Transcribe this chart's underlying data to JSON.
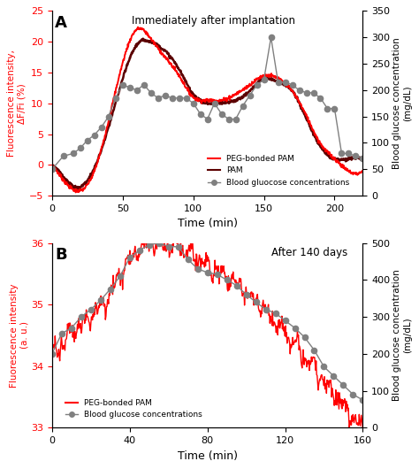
{
  "panel_A": {
    "title": "Immediately after implantation",
    "xlabel": "Time (min)",
    "ylabel_left": "Fluorescence intensity,\nΔF/Fi (%)",
    "ylabel_right": "Blood glucose concentration\n(mg/dL)",
    "xlim": [
      0,
      220
    ],
    "ylim_left": [
      -5,
      25
    ],
    "ylim_right": [
      0,
      350
    ],
    "yticks_left": [
      -5,
      0,
      5,
      10,
      15,
      20,
      25
    ],
    "yticks_right": [
      0,
      50,
      100,
      150,
      200,
      250,
      300,
      350
    ],
    "xticks": [
      0,
      50,
      100,
      150,
      200
    ],
    "peg_pam_color": "#FF0000",
    "pam_color": "#5C0000",
    "glucose_color": "#808080",
    "label_A": "A",
    "glucose_t": [
      0,
      8,
      15,
      20,
      25,
      30,
      35,
      40,
      45,
      50,
      55,
      60,
      65,
      70,
      75,
      80,
      85,
      90,
      95,
      100,
      105,
      110,
      115,
      120,
      125,
      130,
      135,
      140,
      145,
      150,
      155,
      160,
      165,
      170,
      175,
      180,
      185,
      190,
      195,
      200,
      205,
      210,
      215,
      220
    ],
    "glucose_v": [
      50,
      75,
      80,
      90,
      105,
      115,
      130,
      150,
      185,
      210,
      205,
      200,
      210,
      195,
      185,
      190,
      185,
      185,
      185,
      175,
      155,
      145,
      175,
      155,
      145,
      145,
      170,
      190,
      210,
      220,
      300,
      215,
      215,
      210,
      200,
      195,
      195,
      185,
      165,
      165,
      80,
      80,
      75,
      70
    ]
  },
  "panel_B": {
    "title": "After 140 days",
    "xlabel": "Time (min)",
    "ylabel_left": "Fluorescence intensity\n(a. u.)",
    "ylabel_right": "Blood glucose concentration\n(mg/dL)",
    "xlim": [
      0,
      160
    ],
    "ylim_left": [
      33,
      36
    ],
    "ylim_right": [
      0,
      500
    ],
    "yticks_left": [
      33,
      34,
      35,
      36
    ],
    "yticks_right": [
      0,
      100,
      200,
      300,
      400,
      500
    ],
    "xticks": [
      0,
      40,
      80,
      120,
      160
    ],
    "peg_pam_color": "#FF0000",
    "glucose_color": "#808080",
    "label_B": "B",
    "glucose_t": [
      0,
      5,
      10,
      15,
      20,
      25,
      30,
      35,
      40,
      45,
      50,
      55,
      60,
      65,
      70,
      75,
      80,
      85,
      90,
      95,
      100,
      105,
      110,
      115,
      120,
      125,
      130,
      135,
      140,
      145,
      150,
      155,
      160
    ],
    "glucose_v": [
      200,
      255,
      270,
      300,
      320,
      345,
      375,
      410,
      460,
      480,
      495,
      500,
      490,
      490,
      455,
      430,
      420,
      415,
      400,
      385,
      360,
      340,
      320,
      310,
      290,
      270,
      245,
      210,
      165,
      140,
      115,
      90,
      75
    ]
  }
}
